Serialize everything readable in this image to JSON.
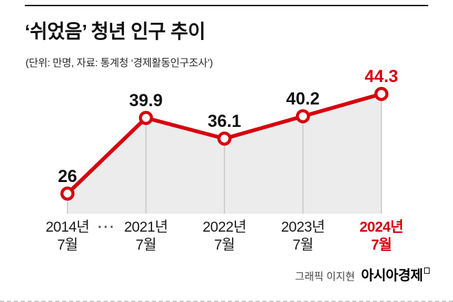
{
  "header": {
    "title": "‘쉬었음’ 청년 인구 추이",
    "subtitle": "(단위: 만명, 자료: 통계청 ‘경제활동인구조사’)"
  },
  "chart_data": {
    "type": "line",
    "title": "‘쉬었음’ 청년 인구 추이",
    "subtitle": "(단위: 만명, 자료: 통계청 ‘경제활동인구조사’)",
    "categories": [
      {
        "year": "2014년",
        "month": "7월"
      },
      {
        "year": "2021년",
        "month": "7월"
      },
      {
        "year": "2022년",
        "month": "7월"
      },
      {
        "year": "2023년",
        "month": "7월"
      },
      {
        "year": "2024년",
        "month": "7월"
      }
    ],
    "values": [
      26,
      39.9,
      36.1,
      40.2,
      44.3
    ],
    "gap_marker": "···",
    "highlight_index": 4,
    "ylim": [
      22.3,
      48
    ],
    "legend": "none",
    "grid": "vertical-guides-only",
    "colors": {
      "line": "#d6000f",
      "marker_fill": "#ffffff",
      "area_fill": "#ececec",
      "grid_line": "#c6c6c6",
      "label": "#111111",
      "highlight": "#d6000f",
      "axis_label": "#1a1a1a",
      "gap_marker": "#555555"
    }
  },
  "footer": {
    "credit": "그래픽 이지현",
    "brand": "아시아경제"
  }
}
